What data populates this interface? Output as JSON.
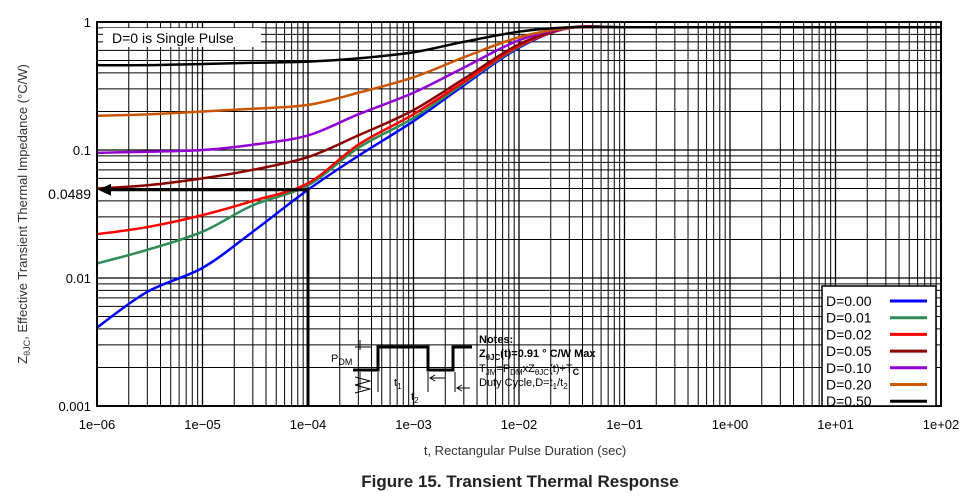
{
  "chart_data": {
    "type": "line",
    "title": "Figure 15. Transient Thermal Response",
    "xlabel": "t, Rectangular Pulse Duration (sec)",
    "ylabel": "ZθJC, Effective Transient Thermal Impedance (°C/W)",
    "ylabel_main": "Z",
    "ylabel_sub": "θJC",
    "ylabel_rest": ", Effective Transient Thermal Impedance (°C/W)",
    "x_scale": "log",
    "y_scale": "log",
    "xlim": [
      1e-06,
      100
    ],
    "ylim": [
      0.001,
      1
    ],
    "grid": true,
    "legend_position": "bottom-right",
    "x_ticks": [
      "1e−06",
      "1e−05",
      "1e−04",
      "1e−03",
      "1e−02",
      "1e−01",
      "1e+00",
      "1e+01",
      "1e+02"
    ],
    "y_ticks": [
      "1",
      "0.1",
      "0.01",
      "0.001"
    ],
    "x": [
      1e-06,
      3e-06,
      1e-05,
      3e-05,
      0.0001,
      0.0003,
      0.001,
      0.003,
      0.01,
      0.03,
      0.1,
      1,
      10,
      100
    ],
    "series": [
      {
        "name": "D=0.00",
        "color": "#0000ff",
        "values": [
          0.0041,
          0.0078,
          0.012,
          0.023,
          0.0489,
          0.09,
          0.168,
          0.32,
          0.63,
          0.9,
          0.91,
          0.91,
          0.91,
          0.91
        ]
      },
      {
        "name": "D=0.01",
        "color": "#2e8b57",
        "values": [
          0.013,
          0.0166,
          0.023,
          0.037,
          0.053,
          0.104,
          0.178,
          0.33,
          0.64,
          0.9,
          0.91,
          0.91,
          0.91,
          0.91
        ]
      },
      {
        "name": "D=0.02",
        "color": "#ff0000",
        "values": [
          0.022,
          0.025,
          0.031,
          0.04,
          0.055,
          0.11,
          0.19,
          0.34,
          0.65,
          0.9,
          0.91,
          0.91,
          0.91,
          0.91
        ]
      },
      {
        "name": "D=0.05",
        "color": "#8b0000",
        "values": [
          0.05,
          0.053,
          0.06,
          0.07,
          0.088,
          0.13,
          0.205,
          0.36,
          0.67,
          0.9,
          0.91,
          0.91,
          0.91,
          0.91
        ]
      },
      {
        "name": "D=0.10",
        "color": "#9400d3",
        "values": [
          0.095,
          0.097,
          0.1,
          0.11,
          0.13,
          0.19,
          0.28,
          0.44,
          0.72,
          0.9,
          0.91,
          0.91,
          0.91,
          0.91
        ]
      },
      {
        "name": "D=0.20",
        "color": "#cc5500",
        "values": [
          0.185,
          0.19,
          0.2,
          0.21,
          0.225,
          0.28,
          0.37,
          0.53,
          0.76,
          0.9,
          0.91,
          0.91,
          0.91,
          0.91
        ]
      },
      {
        "name": "D=0.50",
        "color": "#000000",
        "values": [
          0.46,
          0.46,
          0.47,
          0.48,
          0.49,
          0.52,
          0.58,
          0.7,
          0.84,
          0.91,
          0.91,
          0.91,
          0.91,
          0.91
        ]
      }
    ],
    "annotations": {
      "single_pulse": "D=0 is Single Pulse",
      "readout": {
        "x": 0.0001,
        "y": 0.0489,
        "label": "0.0489"
      },
      "notes_title": "Notes:",
      "note1": {
        "a": "Z",
        "sub": "θJC",
        "b": "(t)=0.91 ° C/W Max"
      },
      "note2": {
        "a": "T",
        "sub1": "JM",
        "b": "=P",
        "sub2": "DM",
        "c": "xZ",
        "sub3": "θJC",
        "d": "(t)+T",
        "sub4": "C"
      },
      "note3": {
        "a": "Duty Cycle,D=t",
        "sub1": "1",
        "b": "/t",
        "sub2": "2"
      },
      "pdm": {
        "a": "P",
        "sub": "DM"
      },
      "t1": {
        "a": "t",
        "sub": "1"
      },
      "t2": {
        "a": "t",
        "sub": "2"
      }
    }
  }
}
